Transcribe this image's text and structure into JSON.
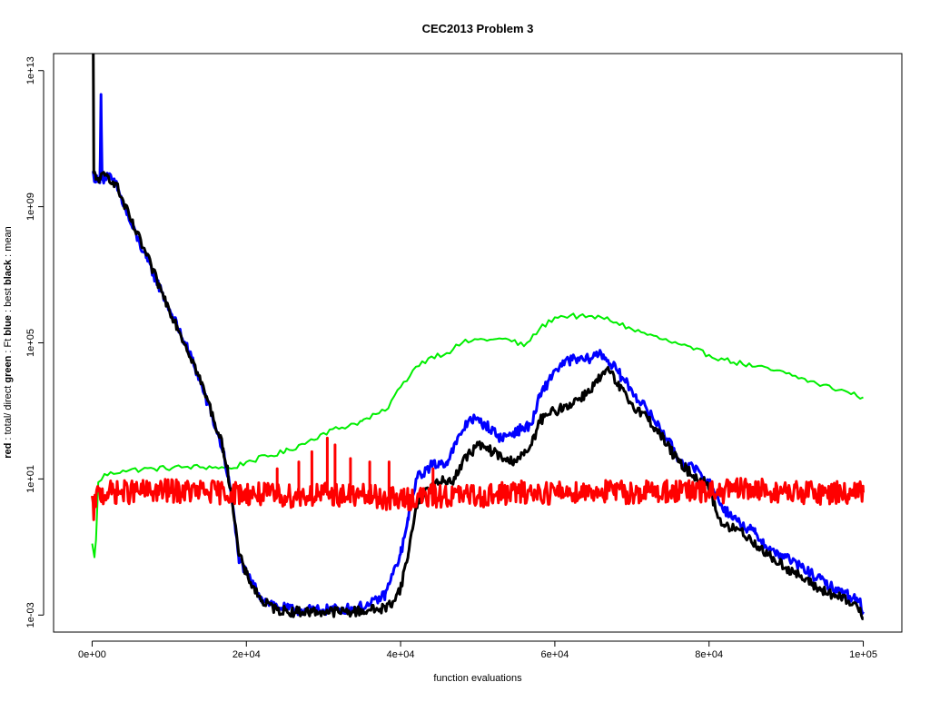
{
  "chart_data": {
    "type": "line",
    "title": "CEC2013 Problem  3",
    "xlabel": "function evaluations",
    "ylabel_parts": [
      {
        "text": "red",
        "bold": true
      },
      {
        "text": " : total/ direct ",
        "bold": false
      },
      {
        "text": "green",
        "bold": true
      },
      {
        "text": " : Ft ",
        "bold": false
      },
      {
        "text": "blue",
        "bold": true
      },
      {
        "text": " : best ",
        "bold": false
      },
      {
        "text": "black",
        "bold": true
      },
      {
        "text": " : mean",
        "bold": false
      }
    ],
    "y_scale": "log10",
    "xlim": [
      -5000,
      105000
    ],
    "ylim_log10": [
      -3.5,
      13.5
    ],
    "x_ticks": [
      {
        "value": 0,
        "label": "0e+00"
      },
      {
        "value": 20000,
        "label": "2e+04"
      },
      {
        "value": 40000,
        "label": "4e+04"
      },
      {
        "value": 60000,
        "label": "6e+04"
      },
      {
        "value": 80000,
        "label": "8e+04"
      },
      {
        "value": 100000,
        "label": "1e+05"
      }
    ],
    "y_ticks": [
      {
        "log10": -3,
        "label": "1e-03"
      },
      {
        "log10": 1,
        "label": "1e+01"
      },
      {
        "log10": 5,
        "label": "1e+05"
      },
      {
        "log10": 9,
        "label": "1e+09"
      },
      {
        "log10": 13,
        "label": "1e+13"
      }
    ],
    "series": [
      {
        "name": "Ft",
        "color": "#00ee00",
        "noise_amp": 0.08,
        "noise_step": 400,
        "points": [
          [
            0,
            -0.9
          ],
          [
            300,
            -1.3
          ],
          [
            500,
            -0.8
          ],
          [
            800,
            0.9
          ],
          [
            1500,
            1.1
          ],
          [
            4000,
            1.25
          ],
          [
            8000,
            1.3
          ],
          [
            12000,
            1.35
          ],
          [
            16000,
            1.35
          ],
          [
            18000,
            1.3
          ],
          [
            20000,
            1.5
          ],
          [
            25000,
            1.8
          ],
          [
            28000,
            2.1
          ],
          [
            30000,
            2.35
          ],
          [
            35000,
            2.7
          ],
          [
            38000,
            3.0
          ],
          [
            40000,
            3.7
          ],
          [
            42000,
            4.3
          ],
          [
            44000,
            4.6
          ],
          [
            46000,
            4.7
          ],
          [
            48000,
            5.0
          ],
          [
            50000,
            5.1
          ],
          [
            52000,
            5.1
          ],
          [
            54000,
            5.1
          ],
          [
            56000,
            4.9
          ],
          [
            58000,
            5.4
          ],
          [
            60000,
            5.75
          ],
          [
            62000,
            5.8
          ],
          [
            64000,
            5.75
          ],
          [
            66000,
            5.75
          ],
          [
            68000,
            5.6
          ],
          [
            70000,
            5.4
          ],
          [
            74000,
            5.1
          ],
          [
            78000,
            4.8
          ],
          [
            82000,
            4.5
          ],
          [
            86000,
            4.3
          ],
          [
            90000,
            4.1
          ],
          [
            94000,
            3.8
          ],
          [
            98000,
            3.55
          ],
          [
            100000,
            3.4
          ]
        ]
      },
      {
        "name": "best",
        "color": "#0000ff",
        "noise_amp": 0.15,
        "noise_step": 150,
        "points": [
          [
            0,
            10.0
          ],
          [
            500,
            9.8
          ],
          [
            1000,
            9.7
          ],
          [
            1150,
            12.3
          ],
          [
            1300,
            9.8
          ],
          [
            2000,
            9.9
          ],
          [
            3000,
            9.7
          ],
          [
            5000,
            8.5
          ],
          [
            7000,
            7.5
          ],
          [
            9000,
            6.5
          ],
          [
            11000,
            5.5
          ],
          [
            13000,
            4.5
          ],
          [
            15000,
            3.2
          ],
          [
            17000,
            1.8
          ],
          [
            18000,
            0.6
          ],
          [
            19000,
            -1.3
          ],
          [
            20000,
            -1.8
          ],
          [
            22000,
            -2.5
          ],
          [
            24000,
            -2.75
          ],
          [
            26000,
            -2.85
          ],
          [
            30000,
            -2.85
          ],
          [
            34000,
            -2.8
          ],
          [
            36000,
            -2.7
          ],
          [
            38000,
            -2.4
          ],
          [
            39000,
            -1.8
          ],
          [
            40000,
            -1.2
          ],
          [
            41000,
            -0.2
          ],
          [
            42000,
            1.0
          ],
          [
            44000,
            1.4
          ],
          [
            46000,
            1.5
          ],
          [
            48000,
            2.4
          ],
          [
            49000,
            2.8
          ],
          [
            51000,
            2.6
          ],
          [
            53000,
            2.2
          ],
          [
            55000,
            2.4
          ],
          [
            57000,
            2.6
          ],
          [
            58000,
            3.4
          ],
          [
            60000,
            4.2
          ],
          [
            62000,
            4.5
          ],
          [
            64000,
            4.5
          ],
          [
            66000,
            4.7
          ],
          [
            68000,
            4.2
          ],
          [
            70000,
            3.6
          ],
          [
            72000,
            3.0
          ],
          [
            74000,
            2.4
          ],
          [
            76000,
            1.6
          ],
          [
            78000,
            1.3
          ],
          [
            80000,
            0.9
          ],
          [
            82000,
            0.1
          ],
          [
            84000,
            -0.3
          ],
          [
            86000,
            -0.6
          ],
          [
            88000,
            -1.1
          ],
          [
            90000,
            -1.3
          ],
          [
            92000,
            -1.6
          ],
          [
            94000,
            -1.9
          ],
          [
            96000,
            -2.2
          ],
          [
            98000,
            -2.4
          ],
          [
            99500,
            -2.6
          ],
          [
            100000,
            -2.9
          ]
        ]
      },
      {
        "name": "mean",
        "color": "#000000",
        "noise_amp": 0.15,
        "noise_step": 150,
        "points": [
          [
            0,
            13.8
          ],
          [
            150,
            13.5
          ],
          [
            220,
            10.0
          ],
          [
            500,
            9.8
          ],
          [
            1000,
            9.85
          ],
          [
            2000,
            9.9
          ],
          [
            3000,
            9.7
          ],
          [
            5000,
            8.6
          ],
          [
            7000,
            7.6
          ],
          [
            9000,
            6.5
          ],
          [
            11000,
            5.5
          ],
          [
            13000,
            4.5
          ],
          [
            15000,
            3.3
          ],
          [
            17000,
            1.9
          ],
          [
            18000,
            0.7
          ],
          [
            19000,
            -1.2
          ],
          [
            20000,
            -1.8
          ],
          [
            22000,
            -2.6
          ],
          [
            24000,
            -2.85
          ],
          [
            26000,
            -2.9
          ],
          [
            30000,
            -2.9
          ],
          [
            34000,
            -2.9
          ],
          [
            36000,
            -2.85
          ],
          [
            38000,
            -2.8
          ],
          [
            39000,
            -2.6
          ],
          [
            40000,
            -2.2
          ],
          [
            41000,
            -1.2
          ],
          [
            42000,
            0.2
          ],
          [
            43000,
            0.6
          ],
          [
            45000,
            0.9
          ],
          [
            47000,
            1.0
          ],
          [
            48000,
            1.5
          ],
          [
            50000,
            2.0
          ],
          [
            52000,
            1.8
          ],
          [
            54000,
            1.5
          ],
          [
            56000,
            1.7
          ],
          [
            57000,
            2.0
          ],
          [
            58000,
            2.7
          ],
          [
            60000,
            3.0
          ],
          [
            62000,
            3.2
          ],
          [
            64000,
            3.5
          ],
          [
            66000,
            4.0
          ],
          [
            67000,
            4.2
          ],
          [
            68000,
            3.8
          ],
          [
            70000,
            3.2
          ],
          [
            72000,
            2.8
          ],
          [
            74000,
            2.2
          ],
          [
            76000,
            1.5
          ],
          [
            78000,
            1.1
          ],
          [
            80000,
            0.8
          ],
          [
            81000,
            0.0
          ],
          [
            82000,
            -0.4
          ],
          [
            84000,
            -0.5
          ],
          [
            86000,
            -0.9
          ],
          [
            88000,
            -1.3
          ],
          [
            90000,
            -1.6
          ],
          [
            92000,
            -1.9
          ],
          [
            94000,
            -2.2
          ],
          [
            96000,
            -2.4
          ],
          [
            98000,
            -2.6
          ],
          [
            99500,
            -2.8
          ],
          [
            100000,
            -3.1
          ]
        ]
      },
      {
        "name": "total/direct",
        "color": "#ff0000",
        "noise_amp": 0.35,
        "noise_step": 120,
        "points": [
          [
            0,
            0.5
          ],
          [
            200,
            -0.2
          ],
          [
            500,
            0.5
          ],
          [
            2000,
            0.6
          ],
          [
            10000,
            0.65
          ],
          [
            18000,
            0.6
          ],
          [
            25000,
            0.5
          ],
          [
            30000,
            0.55
          ],
          [
            35000,
            0.5
          ],
          [
            40000,
            0.4
          ],
          [
            45000,
            0.5
          ],
          [
            50000,
            0.5
          ],
          [
            55000,
            0.6
          ],
          [
            60000,
            0.6
          ],
          [
            65000,
            0.65
          ],
          [
            70000,
            0.6
          ],
          [
            75000,
            0.65
          ],
          [
            80000,
            0.6
          ],
          [
            85000,
            0.7
          ],
          [
            90000,
            0.6
          ],
          [
            95000,
            0.6
          ],
          [
            100000,
            0.6
          ]
        ],
        "spikes": [
          [
            30500,
            2.2
          ],
          [
            31500,
            2.0
          ],
          [
            28500,
            1.8
          ],
          [
            33500,
            1.6
          ],
          [
            26800,
            1.5
          ],
          [
            36000,
            1.5
          ],
          [
            44200,
            1.3
          ],
          [
            38500,
            1.5
          ],
          [
            24000,
            1.3
          ],
          [
            86000,
            0.9
          ]
        ]
      }
    ]
  }
}
